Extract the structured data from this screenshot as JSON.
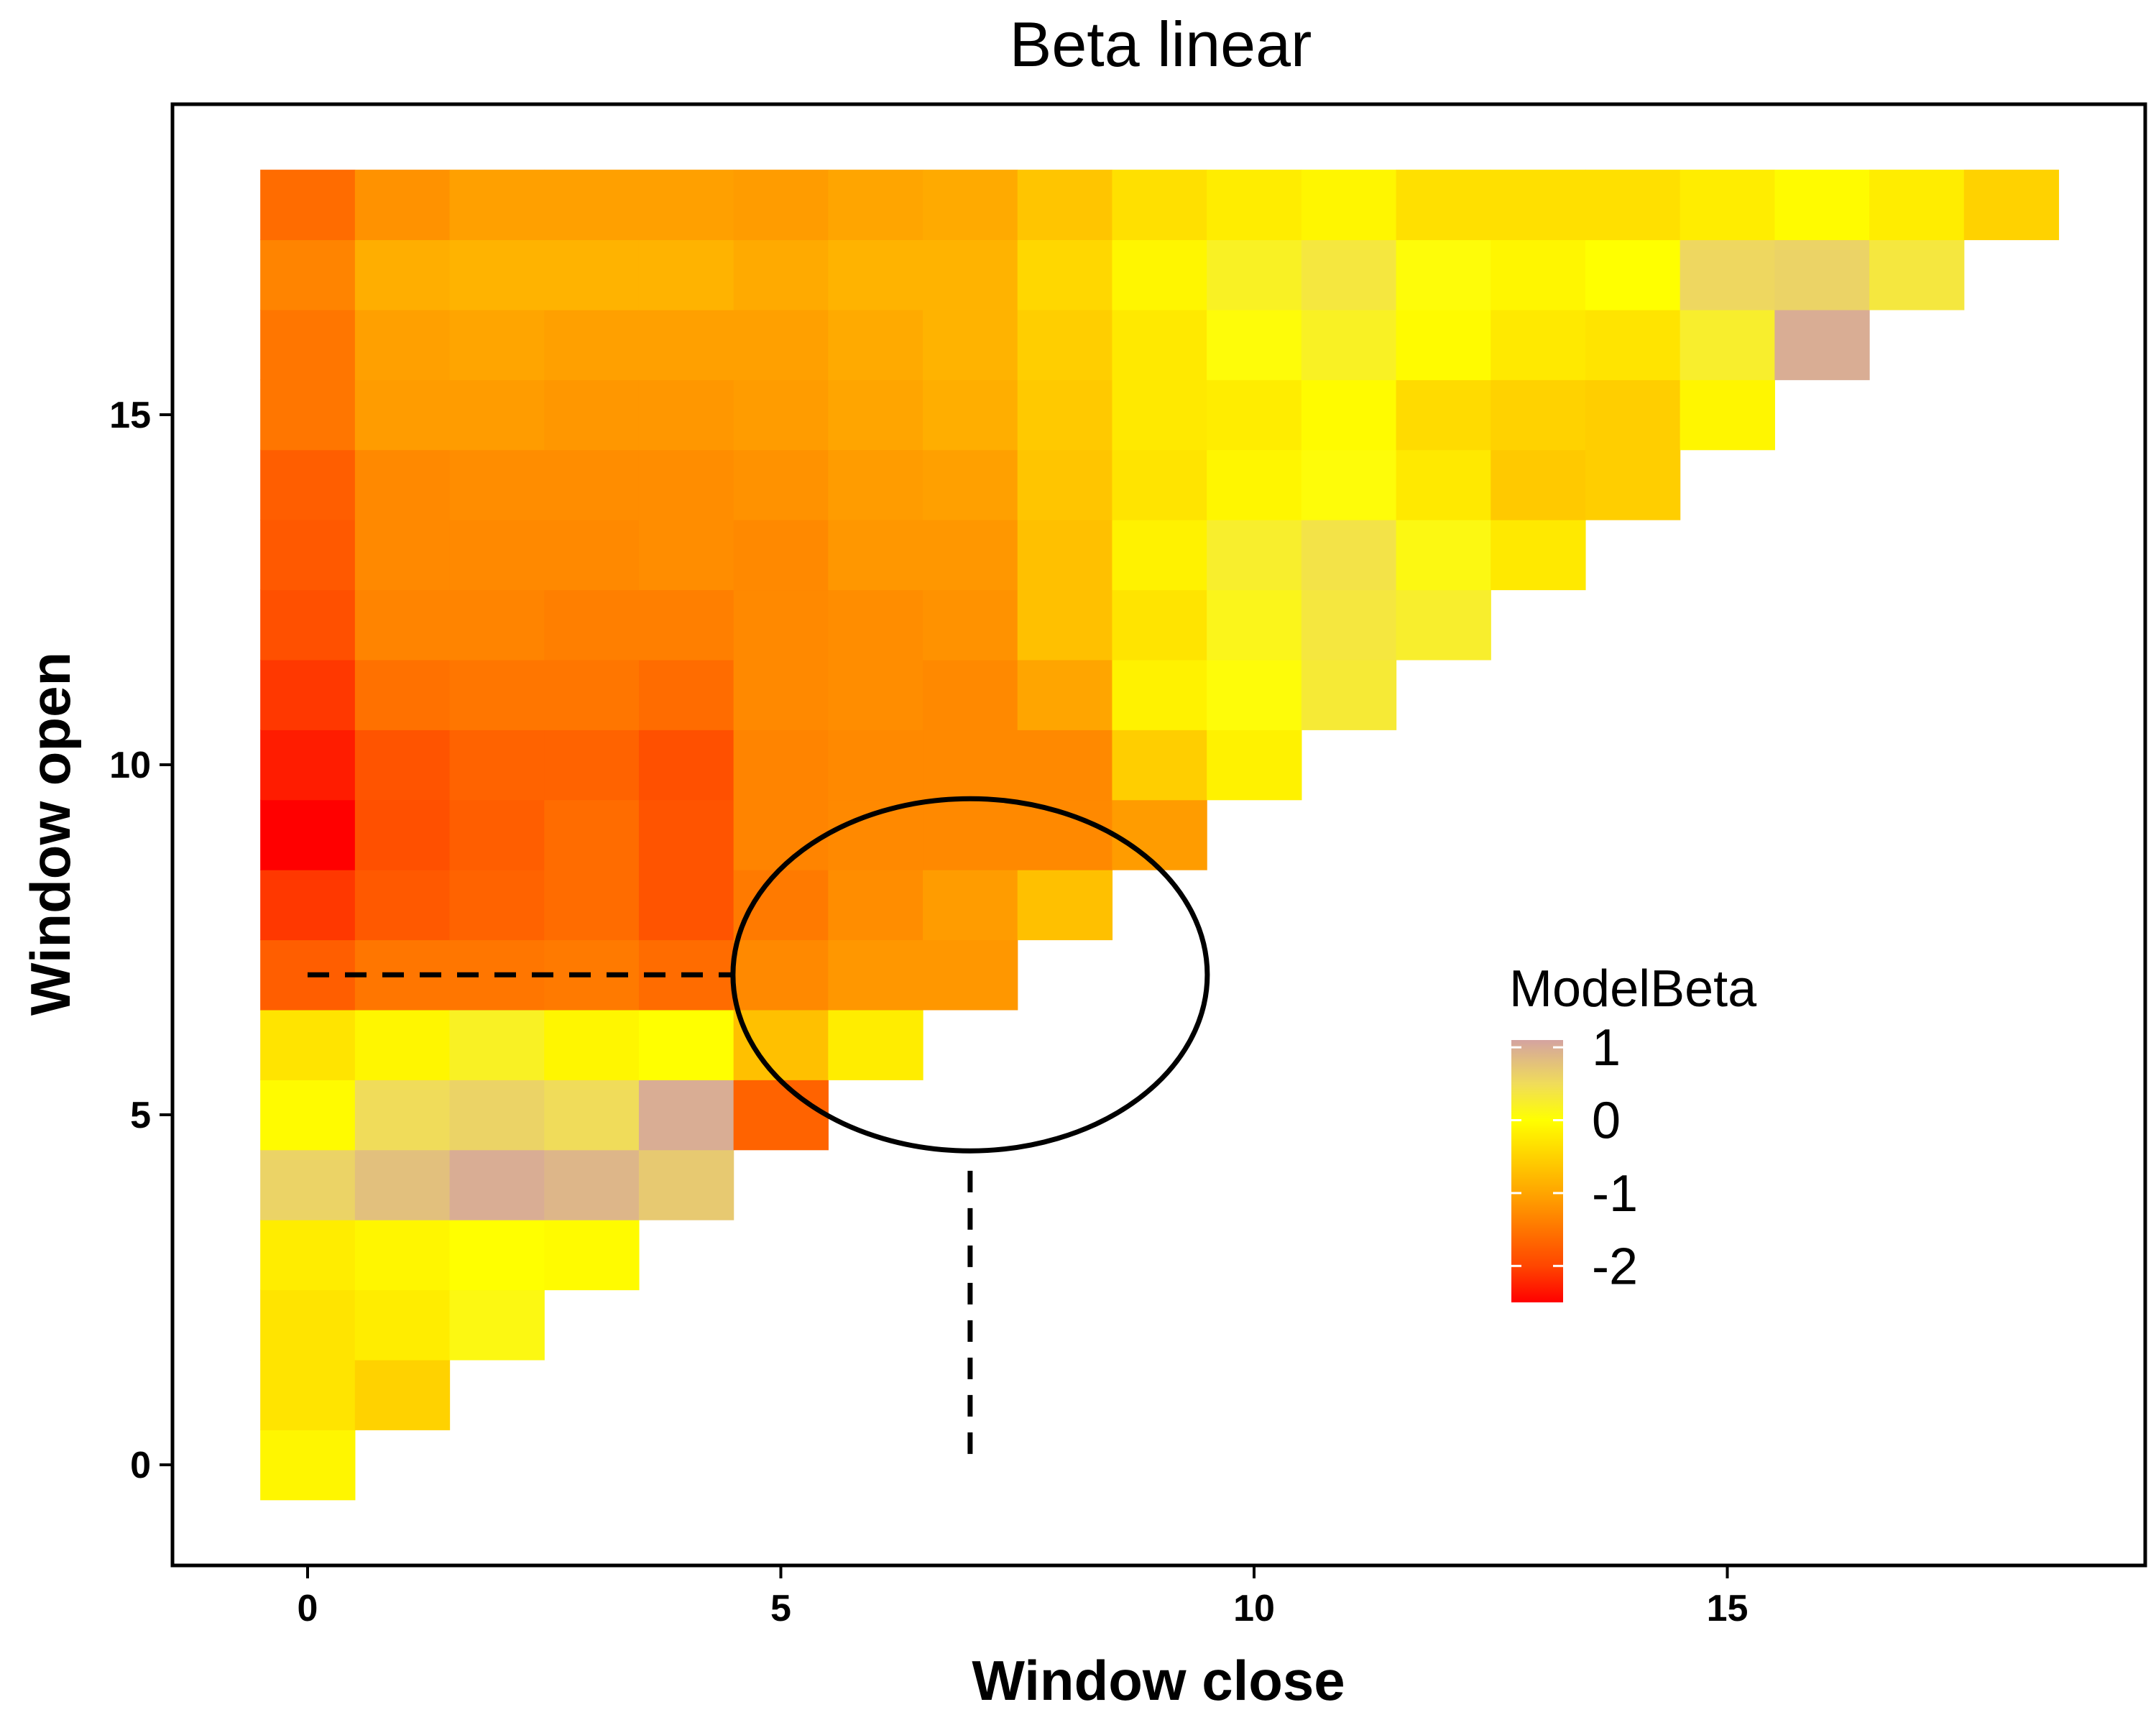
{
  "chart_data": {
    "type": "heatmap",
    "title": "Beta linear",
    "xlabel": "Window close",
    "ylabel": "Window open",
    "xlim": [
      -1.5,
      19.5
    ],
    "ylim": [
      -1.5,
      19.0
    ],
    "x_ticks": [
      0,
      5,
      10,
      15
    ],
    "y_ticks": [
      0,
      5,
      10,
      15
    ],
    "grid": false,
    "legend": {
      "title": "ModelBeta",
      "placement": "right",
      "labels": [
        "1",
        "0",
        "-1",
        "-2"
      ],
      "values": [
        1,
        0,
        -1,
        -2
      ],
      "range": [
        -2.5,
        1.1
      ]
    },
    "colors": {
      "low": "#ff0000",
      "mid_low": "#ff9900",
      "zero": "#ffff00",
      "high": "#d4a3a0"
    },
    "rows": [
      {
        "open": 0,
        "values": [
          -0.1
        ]
      },
      {
        "open": 1,
        "values": [
          -0.3,
          -0.5
        ]
      },
      {
        "open": 2,
        "values": [
          -0.3,
          -0.2,
          0.1
        ]
      },
      {
        "open": 3,
        "values": [
          -0.2,
          -0.1,
          0.0,
          -0.05
        ]
      },
      {
        "open": 4,
        "values": [
          0.6,
          0.8,
          1.0,
          0.9,
          0.7
        ]
      },
      {
        "open": 5,
        "values": [
          -0.05,
          0.5,
          0.6,
          0.5,
          1.0,
          -1.7
        ]
      },
      {
        "open": 6,
        "values": [
          -0.3,
          -0.1,
          0.2,
          -0.1,
          0.0,
          -0.7,
          -0.2
        ]
      },
      {
        "open": 7,
        "values": [
          -1.75,
          -1.5,
          -1.5,
          -1.45,
          -1.6,
          -1.3,
          -1.15,
          -1.15
        ]
      },
      {
        "open": 8,
        "values": [
          -2.1,
          -1.8,
          -1.7,
          -1.6,
          -1.85,
          -1.45,
          -1.25,
          -1.1,
          -0.7
        ]
      },
      {
        "open": 9,
        "values": [
          -2.5,
          -1.9,
          -1.75,
          -1.6,
          -1.85,
          -1.35,
          -1.3,
          -1.3,
          -1.3,
          -1.1
        ]
      },
      {
        "open": 10,
        "values": [
          -2.3,
          -1.85,
          -1.7,
          -1.7,
          -1.9,
          -1.35,
          -1.3,
          -1.3,
          -1.3,
          -0.55,
          -0.15
        ]
      },
      {
        "open": 11,
        "values": [
          -2.1,
          -1.55,
          -1.5,
          -1.5,
          -1.6,
          -1.3,
          -1.25,
          -1.3,
          -1.0,
          -0.15,
          0.05,
          0.3
        ]
      },
      {
        "open": 12,
        "values": [
          -1.9,
          -1.35,
          -1.35,
          -1.4,
          -1.4,
          -1.3,
          -1.25,
          -1.2,
          -0.7,
          -0.3,
          0.15,
          0.35,
          0.25
        ]
      },
      {
        "open": 13,
        "values": [
          -1.8,
          -1.3,
          -1.3,
          -1.3,
          -1.25,
          -1.3,
          -1.15,
          -1.15,
          -0.7,
          -0.15,
          0.25,
          0.4,
          0.1,
          -0.25
        ]
      },
      {
        "open": 14,
        "values": [
          -1.75,
          -1.3,
          -1.25,
          -1.25,
          -1.25,
          -1.2,
          -1.1,
          -1.05,
          -0.65,
          -0.3,
          -0.1,
          0.05,
          -0.25,
          -0.6,
          -0.55
        ]
      },
      {
        "open": 15,
        "values": [
          -1.5,
          -1.1,
          -1.1,
          -1.15,
          -1.15,
          -1.1,
          -1.0,
          -0.9,
          -0.6,
          -0.25,
          -0.2,
          -0.05,
          -0.4,
          -0.5,
          -0.55,
          -0.1
        ]
      },
      {
        "open": 16,
        "values": [
          -1.5,
          -1.05,
          -1.0,
          -1.05,
          -1.05,
          -1.05,
          -0.95,
          -0.85,
          -0.55,
          -0.25,
          0.05,
          0.2,
          -0.05,
          -0.25,
          -0.3,
          0.25,
          1.0
        ]
      },
      {
        "open": 17,
        "values": [
          -1.35,
          -0.9,
          -0.85,
          -0.85,
          -0.85,
          -0.95,
          -0.85,
          -0.85,
          -0.45,
          -0.1,
          0.2,
          0.35,
          0.05,
          -0.1,
          0.0,
          0.55,
          0.6,
          0.35
        ]
      },
      {
        "open": 18,
        "values": [
          -1.6,
          -1.2,
          -1.05,
          -1.05,
          -1.05,
          -1.1,
          -1.0,
          -0.95,
          -0.65,
          -0.35,
          -0.2,
          -0.1,
          -0.35,
          -0.35,
          -0.35,
          -0.2,
          -0.05,
          -0.2,
          -0.5
        ]
      }
    ],
    "annotations": {
      "ellipse": {
        "center_x": 7,
        "center_y": 7
      },
      "horizontal_dashed_line": {
        "from_x": 0,
        "to_x": 4.5,
        "y": 7
      },
      "vertical_dashed_line": {
        "x": 7,
        "from_y": 0,
        "to_y": 4.2
      }
    }
  }
}
